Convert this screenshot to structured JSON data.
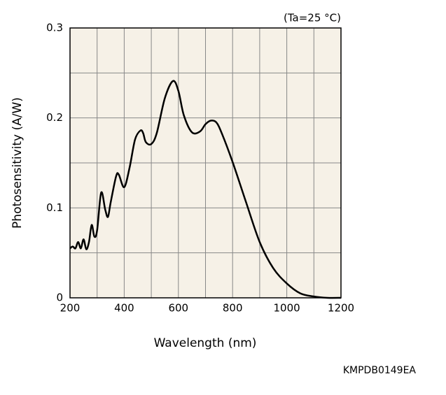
{
  "chart_data": {
    "type": "line",
    "note": "(Ta=25 °C)",
    "xlabel": "Wavelength (nm)",
    "ylabel": "Photosensitivity (A/W)",
    "code": "KMPDB0149EA",
    "xlim": [
      200,
      1200
    ],
    "xticks": [
      200,
      400,
      600,
      800,
      1000,
      1200
    ],
    "x_minor_ticks": [
      300,
      500,
      700,
      900,
      1100
    ],
    "ylim": [
      0,
      0.3
    ],
    "yticks": [
      0,
      0.1,
      0.2,
      0.3
    ],
    "y_minor_ticks": [
      0.05,
      0.15,
      0.25
    ],
    "grid": true,
    "series": [
      {
        "color": "#000000",
        "x": [
          200,
          210,
          220,
          230,
          240,
          250,
          260,
          270,
          280,
          290,
          300,
          315,
          330,
          340,
          350,
          370,
          380,
          400,
          420,
          440,
          460,
          470,
          480,
          500,
          520,
          550,
          580,
          600,
          620,
          650,
          680,
          700,
          720,
          740,
          760,
          800,
          850,
          900,
          950,
          1000,
          1050,
          1100,
          1150,
          1200
        ],
        "values": [
          0.055,
          0.057,
          0.055,
          0.062,
          0.055,
          0.065,
          0.054,
          0.062,
          0.081,
          0.068,
          0.075,
          0.117,
          0.098,
          0.09,
          0.106,
          0.135,
          0.137,
          0.123,
          0.145,
          0.176,
          0.186,
          0.183,
          0.173,
          0.171,
          0.183,
          0.222,
          0.241,
          0.23,
          0.203,
          0.184,
          0.185,
          0.193,
          0.197,
          0.195,
          0.183,
          0.151,
          0.106,
          0.062,
          0.033,
          0.016,
          0.005,
          0.0015,
          0,
          0
        ]
      }
    ]
  }
}
